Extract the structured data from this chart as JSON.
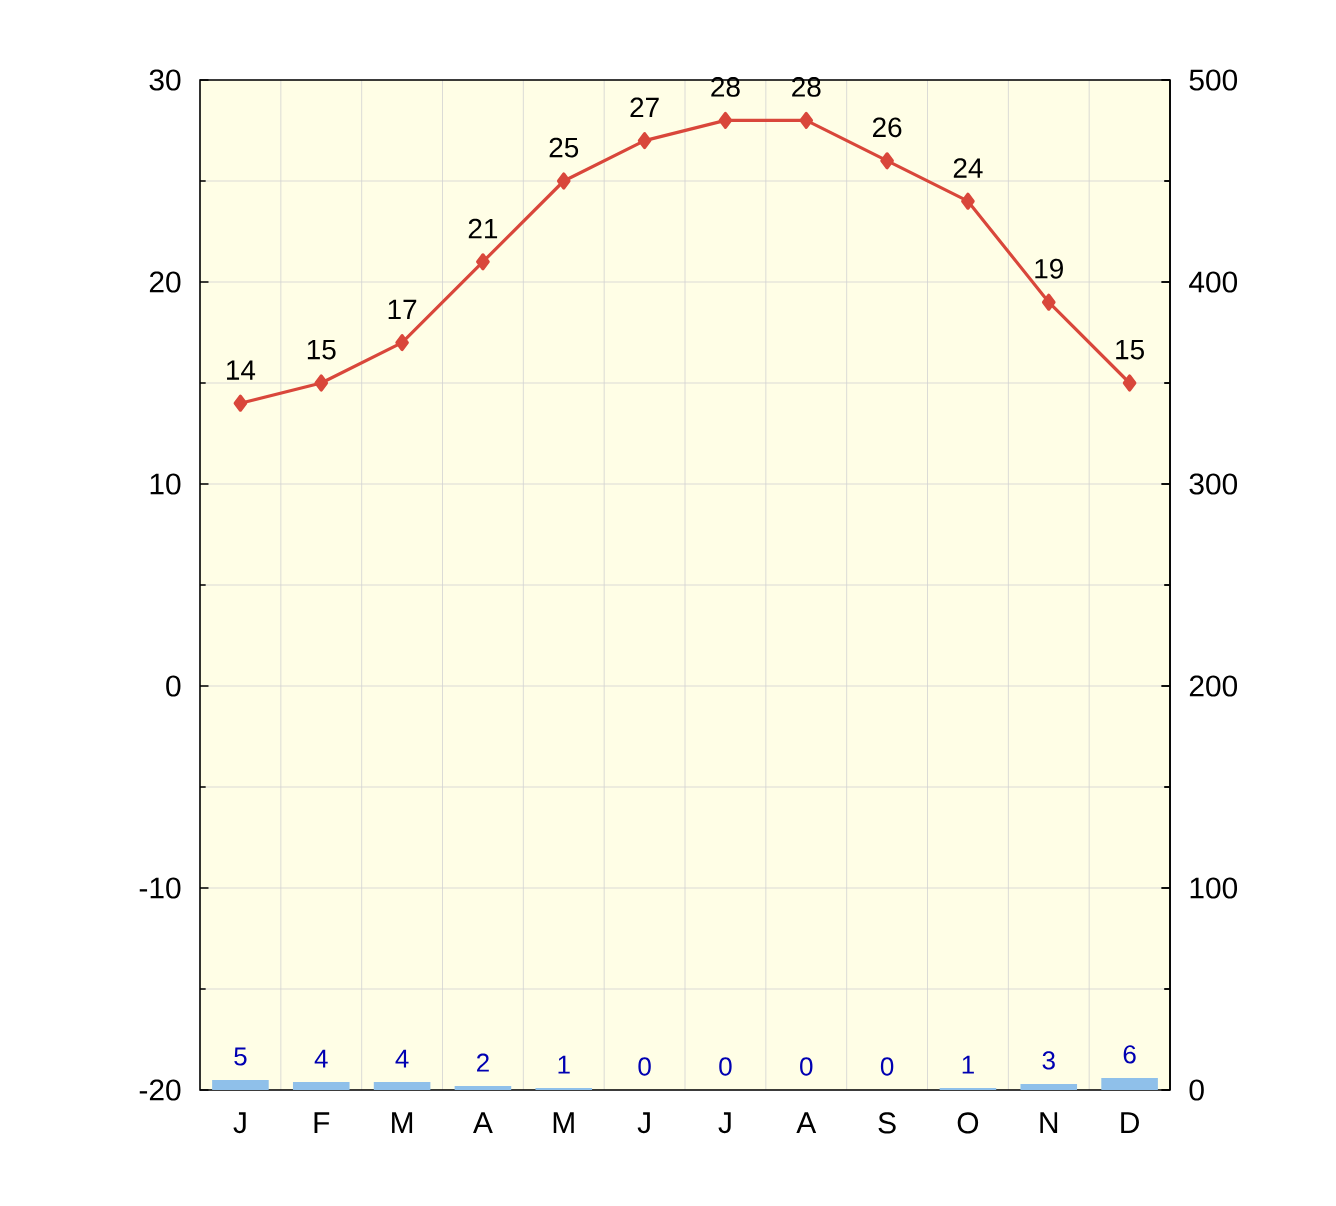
{
  "chart_data": {
    "type": "line",
    "categories": [
      "J",
      "F",
      "M",
      "A",
      "M",
      "J",
      "J",
      "A",
      "S",
      "O",
      "N",
      "D"
    ],
    "series": [
      {
        "color": "#d9473b",
        "values": [
          14,
          15,
          17,
          21,
          25,
          27,
          28,
          28,
          26,
          24,
          19,
          15
        ]
      },
      {
        "type": "bar",
        "axis": "y2",
        "color": "#8fc0ea",
        "values": [
          5,
          4,
          4,
          2,
          1,
          0,
          0,
          0,
          0,
          1,
          3,
          6
        ]
      }
    ],
    "ylim": [
      -20,
      30
    ],
    "yticks": [
      -20,
      -10,
      0,
      10,
      20,
      30
    ],
    "y2lim": [
      0,
      500
    ],
    "y2ticks": [
      0,
      100,
      200,
      300,
      400,
      500
    ],
    "grid": true,
    "marker": "diamond",
    "data_labels": true
  }
}
